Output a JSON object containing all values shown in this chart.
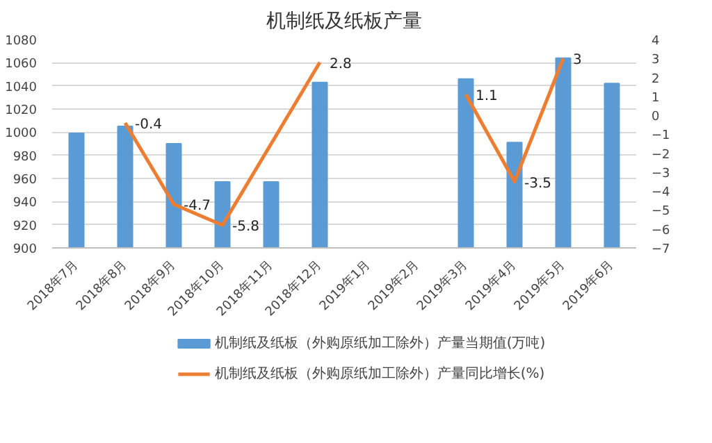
{
  "chart_data": {
    "type": "bar",
    "title": "机制纸及纸板产量",
    "categories": [
      "2018年7月",
      "2018年8月",
      "2018年9月",
      "2018年10月",
      "2018年11月",
      "2018年12月",
      "2019年1月",
      "2019年2月",
      "2019年3月",
      "2019年4月",
      "2019年5月",
      "2019年6月"
    ],
    "series": [
      {
        "name": "机制纸及纸板（外购原纸加工除外）产量当期值(万吨)",
        "color": "#5b9bd5",
        "values": [
          999,
          1005,
          990,
          957,
          957,
          1043,
          null,
          null,
          1046,
          991,
          1064,
          1042
        ]
      },
      {
        "name": "机制纸及纸板（外购原纸加工除外）产量同比增长(%)",
        "color": "#ed7d31",
        "type": "line",
        "axis": "y2",
        "values": [
          null,
          -0.4,
          -4.7,
          -5.8,
          -1.5,
          2.8,
          null,
          null,
          1.1,
          -3.5,
          3,
          null
        ],
        "value_labels": [
          null,
          "-0.4",
          "-4.7",
          "-5.8",
          null,
          "2.8",
          null,
          null,
          "1.1",
          "-3.5",
          "3",
          null
        ]
      }
    ],
    "ylim": [
      900,
      1080
    ],
    "yticks": [
      900,
      920,
      940,
      960,
      980,
      1000,
      1020,
      1040,
      1060,
      1080
    ],
    "y2lim": [
      -7,
      4
    ],
    "y2ticks": [
      -7,
      -6,
      -5,
      -4,
      -3,
      -2,
      -1,
      0,
      1,
      2,
      3,
      4
    ],
    "grid": "y",
    "legend": "bottom",
    "marker": "none",
    "line_style": "solid"
  }
}
